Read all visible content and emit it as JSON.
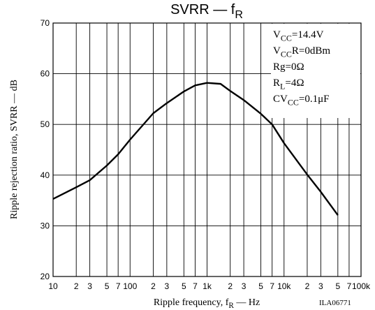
{
  "chart_data": {
    "type": "line",
    "title": [
      "SVRR — f",
      "R"
    ],
    "x_label": [
      "Ripple frequency, f",
      "R",
      " — Hz"
    ],
    "y_label": "Ripple rejection ratio, SVRR — dB",
    "code": "ILA06771",
    "annotations": [
      [
        "V",
        "CC",
        "=14.4V"
      ],
      [
        "V",
        "CC",
        "R=0dBm"
      ],
      [
        "Rg=0Ω"
      ],
      [
        "R",
        "L",
        "=4Ω"
      ],
      [
        "CV",
        "CC",
        "=0.1μF"
      ]
    ],
    "x": [
      10,
      20,
      30,
      50,
      70,
      100,
      200,
      300,
      500,
      700,
      1000,
      1500,
      2000,
      3000,
      5000,
      7000,
      10000,
      20000,
      30000,
      50000
    ],
    "series": [
      {
        "name": "SVRR",
        "color": "#000000",
        "values": [
          35.3,
          37.6,
          39,
          41.9,
          44.1,
          47,
          52.2,
          54.2,
          56.5,
          57.7,
          58.2,
          58,
          56.6,
          54.8,
          52.1,
          50,
          46.3,
          40.1,
          36.7,
          32.1
        ]
      }
    ],
    "xscale": "log",
    "xlim": [
      10,
      100000
    ],
    "xticks": [
      10,
      {
        "value": 20,
        "label": "2"
      },
      {
        "value": 30,
        "label": "3"
      },
      {
        "value": 50,
        "label": "5"
      },
      {
        "value": 70,
        "label": "7"
      },
      100,
      {
        "value": 200,
        "label": "2"
      },
      {
        "value": 300,
        "label": "3"
      },
      {
        "value": 500,
        "label": "5"
      },
      {
        "value": 700,
        "label": "7"
      },
      {
        "value": 1000,
        "label": "1k"
      },
      {
        "value": 2000,
        "label": "2"
      },
      {
        "value": 3000,
        "label": "3"
      },
      {
        "value": 5000,
        "label": "5"
      },
      {
        "value": 7000,
        "label": "7"
      },
      {
        "value": 10000,
        "label": "10k"
      },
      {
        "value": 20000,
        "label": "2"
      },
      {
        "value": 30000,
        "label": "3"
      },
      {
        "value": 50000,
        "label": "5"
      },
      {
        "value": 70000,
        "label": "7"
      },
      {
        "value": 100000,
        "label": "100k"
      }
    ],
    "ylim": [
      20,
      70
    ],
    "yticks": [
      20,
      30,
      40,
      50,
      60,
      70
    ],
    "grid": true
  }
}
